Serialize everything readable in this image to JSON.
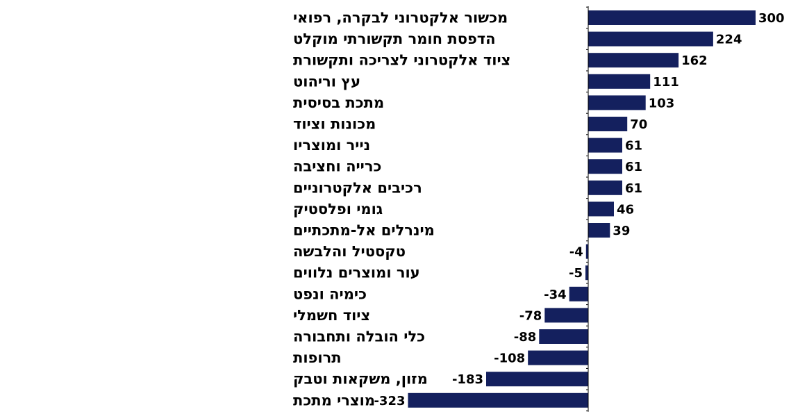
{
  "chart_data": {
    "type": "bar",
    "orientation": "horizontal",
    "bar_color": "#14205e",
    "categories": [
      "מכשור אלקטרוני לבקרה, רפואי",
      "הדפסת חומר תקשורתי מוקלט",
      "ציוד אלקטרוני לצריכה ותקשורת",
      "עץ וריהוט",
      "מתכת בסיסית",
      "מכונות וציוד",
      "נייר ומוצריו",
      "כרייה וחציבה",
      "רכיבים אלקטרוניים",
      "גומי ופלסטיק",
      "מינרלים אל-מתכתיים",
      "טקסטיל והלבשה",
      "עור ומוצרים נלווים",
      "כימיה ונפט",
      "ציוד חשמלי",
      "כלי הובלה ותחבורה",
      "תרופות",
      "מזון, משקאות וטבק",
      "מוצרי מתכת"
    ],
    "values": [
      300,
      224,
      162,
      111,
      103,
      70,
      61,
      61,
      61,
      46,
      39,
      -4,
      -5,
      -34,
      -78,
      -88,
      -108,
      -183,
      -323
    ],
    "value_labels": [
      "300",
      "224",
      "162",
      "111",
      "103",
      "70",
      "61",
      "61",
      "61",
      "46",
      "39",
      "-4",
      "-5",
      "-34",
      "-78",
      "-88",
      "-108",
      "-183",
      "-323"
    ],
    "xlim": [
      -323,
      300
    ],
    "grid": false,
    "legend": "none"
  }
}
